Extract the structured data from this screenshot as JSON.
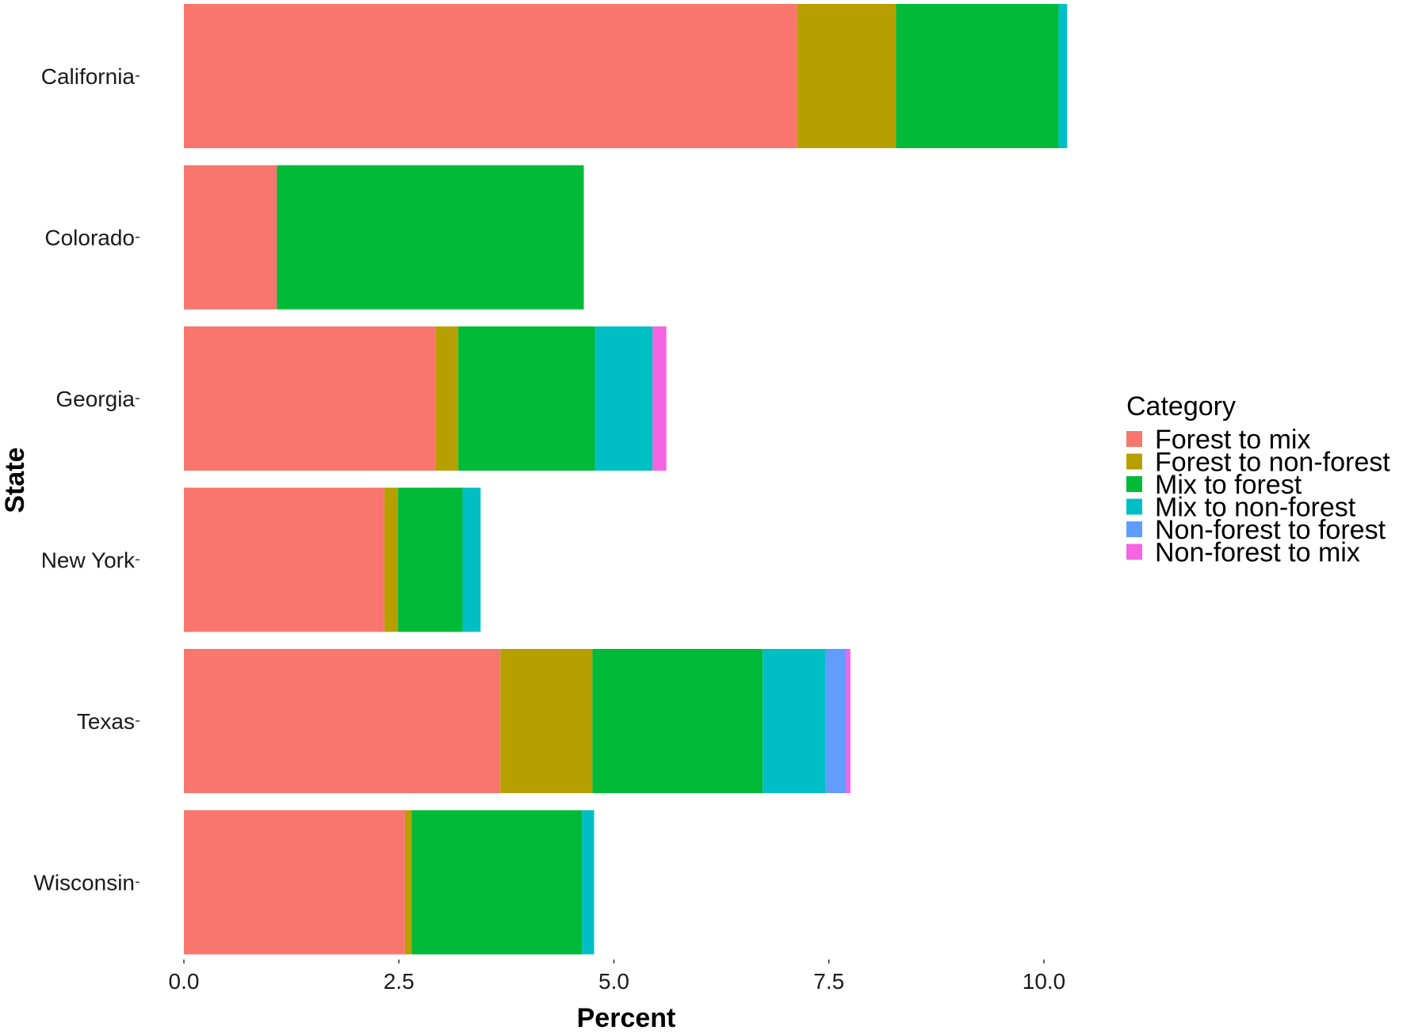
{
  "chart_data": {
    "type": "bar",
    "orientation": "horizontal",
    "stacked": true,
    "title": "",
    "xlabel": "Percent",
    "ylabel": "State",
    "xlim": [
      0,
      10.2
    ],
    "x_ticks": [
      0,
      2.5,
      5,
      7.5,
      10
    ],
    "x_tick_labels": [
      "0.0",
      "2.5",
      "5.0",
      "7.5",
      "10.0"
    ],
    "grid": false,
    "legend_position": "right",
    "legend_title": "Category",
    "categories": [
      "California",
      "Colorado",
      "Georgia",
      "New York",
      "Texas",
      "Wisconsin"
    ],
    "series": [
      {
        "name": "Forest to mix",
        "color": "#F8766D",
        "values": [
          7.13,
          1.08,
          2.93,
          2.33,
          3.68,
          2.57
        ]
      },
      {
        "name": "Forest to non-forest",
        "color": "#B79F00",
        "values": [
          1.15,
          0,
          0.26,
          0.16,
          1.07,
          0.08
        ]
      },
      {
        "name": "Mix to forest",
        "color": "#00BA38",
        "values": [
          1.89,
          3.57,
          1.59,
          0.75,
          1.98,
          1.98
        ]
      },
      {
        "name": "Mix to non-forest",
        "color": "#00BFC4",
        "values": [
          0.1,
          0,
          0.67,
          0.21,
          0.73,
          0.14
        ]
      },
      {
        "name": "Non-forest to forest",
        "color": "#619CFF",
        "values": [
          0,
          0,
          0,
          0,
          0.24,
          0
        ]
      },
      {
        "name": "Non-forest to mix",
        "color": "#F564E3",
        "values": [
          0,
          0,
          0.16,
          0,
          0.05,
          0
        ]
      }
    ]
  }
}
